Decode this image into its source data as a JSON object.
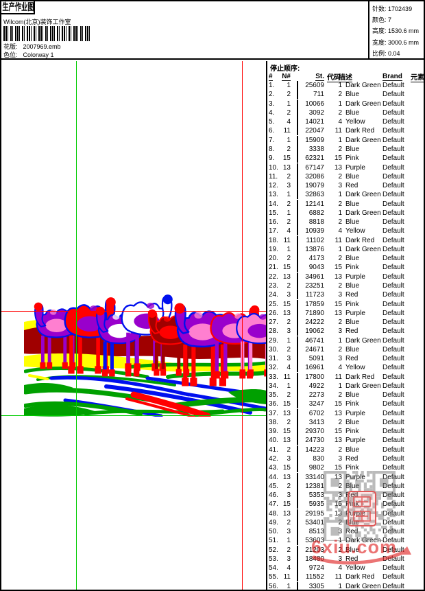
{
  "header": {
    "title": "生产作业图",
    "subtitle": "Wilcom(北京)装饰工作室",
    "pattern_label": "花版:",
    "pattern_value": "2007969.emb",
    "colorway_label": "色位:",
    "colorway_value": "Colorway 1",
    "info": [
      {
        "label": "针数:",
        "value": "1702439"
      },
      {
        "label": "颜色:",
        "value": "7"
      },
      {
        "label": "高度:",
        "value": "1530.6 mm"
      },
      {
        "label": "宽度:",
        "value": "3000.6 mm"
      },
      {
        "label": "比例:",
        "value": "0.04"
      }
    ]
  },
  "stop_table": {
    "section_title": "停止顺序:",
    "columns": [
      "#",
      "N#",
      "St.",
      "代码",
      "描述",
      "Brand",
      "元素"
    ],
    "rows": [
      [
        "1.",
        "1",
        "25609",
        "1",
        "Dark Green",
        "Default"
      ],
      [
        "2.",
        "2",
        "711",
        "2",
        "Blue",
        "Default"
      ],
      [
        "3.",
        "1",
        "10066",
        "1",
        "Dark Green",
        "Default"
      ],
      [
        "4.",
        "2",
        "3092",
        "2",
        "Blue",
        "Default"
      ],
      [
        "5.",
        "4",
        "14021",
        "4",
        "Yellow",
        "Default"
      ],
      [
        "6.",
        "11",
        "22047",
        "11",
        "Dark Red",
        "Default"
      ],
      [
        "7.",
        "1",
        "15909",
        "1",
        "Dark Green",
        "Default"
      ],
      [
        "8.",
        "2",
        "3338",
        "2",
        "Blue",
        "Default"
      ],
      [
        "9.",
        "15",
        "62321",
        "15",
        "Pink",
        "Default"
      ],
      [
        "10.",
        "13",
        "67147",
        "13",
        "Purple",
        "Default"
      ],
      [
        "11.",
        "2",
        "32086",
        "2",
        "Blue",
        "Default"
      ],
      [
        "12.",
        "3",
        "19079",
        "3",
        "Red",
        "Default"
      ],
      [
        "13.",
        "1",
        "32863",
        "1",
        "Dark Green",
        "Default"
      ],
      [
        "14.",
        "2",
        "12141",
        "2",
        "Blue",
        "Default"
      ],
      [
        "15.",
        "1",
        "6882",
        "1",
        "Dark Green",
        "Default"
      ],
      [
        "16.",
        "2",
        "8818",
        "2",
        "Blue",
        "Default"
      ],
      [
        "17.",
        "4",
        "10939",
        "4",
        "Yellow",
        "Default"
      ],
      [
        "18.",
        "11",
        "11102",
        "11",
        "Dark Red",
        "Default"
      ],
      [
        "19.",
        "1",
        "13876",
        "1",
        "Dark Green",
        "Default"
      ],
      [
        "20.",
        "2",
        "4173",
        "2",
        "Blue",
        "Default"
      ],
      [
        "21.",
        "15",
        "9043",
        "15",
        "Pink",
        "Default"
      ],
      [
        "22.",
        "13",
        "34961",
        "13",
        "Purple",
        "Default"
      ],
      [
        "23.",
        "2",
        "23251",
        "2",
        "Blue",
        "Default"
      ],
      [
        "24.",
        "3",
        "11723",
        "3",
        "Red",
        "Default"
      ],
      [
        "25.",
        "15",
        "17859",
        "15",
        "Pink",
        "Default"
      ],
      [
        "26.",
        "13",
        "71890",
        "13",
        "Purple",
        "Default"
      ],
      [
        "27.",
        "2",
        "24222",
        "2",
        "Blue",
        "Default"
      ],
      [
        "28.",
        "3",
        "19062",
        "3",
        "Red",
        "Default"
      ],
      [
        "29.",
        "1",
        "46741",
        "1",
        "Dark Green",
        "Default"
      ],
      [
        "30.",
        "2",
        "24671",
        "2",
        "Blue",
        "Default"
      ],
      [
        "31.",
        "3",
        "5091",
        "3",
        "Red",
        "Default"
      ],
      [
        "32.",
        "4",
        "16961",
        "4",
        "Yellow",
        "Default"
      ],
      [
        "33.",
        "11",
        "17800",
        "11",
        "Dark Red",
        "Default"
      ],
      [
        "34.",
        "1",
        "4922",
        "1",
        "Dark Green",
        "Default"
      ],
      [
        "35.",
        "2",
        "2273",
        "2",
        "Blue",
        "Default"
      ],
      [
        "36.",
        "15",
        "3247",
        "15",
        "Pink",
        "Default"
      ],
      [
        "37.",
        "13",
        "6702",
        "13",
        "Purple",
        "Default"
      ],
      [
        "38.",
        "2",
        "3413",
        "2",
        "Blue",
        "Default"
      ],
      [
        "39.",
        "15",
        "29370",
        "15",
        "Pink",
        "Default"
      ],
      [
        "40.",
        "13",
        "24730",
        "13",
        "Purple",
        "Default"
      ],
      [
        "41.",
        "2",
        "14223",
        "2",
        "Blue",
        "Default"
      ],
      [
        "42.",
        "3",
        "830",
        "3",
        "Red",
        "Default"
      ],
      [
        "43.",
        "15",
        "9802",
        "15",
        "Pink",
        "Default"
      ],
      [
        "44.",
        "13",
        "33140",
        "13",
        "Purple",
        "Default"
      ],
      [
        "45.",
        "2",
        "12381",
        "2",
        "Blue",
        "Default"
      ],
      [
        "46.",
        "3",
        "5353",
        "3",
        "Red",
        "Default"
      ],
      [
        "47.",
        "15",
        "5935",
        "15",
        "Pink",
        "Default"
      ],
      [
        "48.",
        "13",
        "29195",
        "13",
        "Purple",
        "Default"
      ],
      [
        "49.",
        "2",
        "53401",
        "2",
        "Blue",
        "Default"
      ],
      [
        "50.",
        "3",
        "8513",
        "3",
        "Red",
        "Default"
      ],
      [
        "51.",
        "1",
        "53603",
        "1",
        "Dark Green",
        "Default"
      ],
      [
        "52.",
        "2",
        "21203",
        "2",
        "Blue",
        "Default"
      ],
      [
        "53.",
        "3",
        "18480",
        "3",
        "Red",
        "Default"
      ],
      [
        "54.",
        "4",
        "9724",
        "4",
        "Yellow",
        "Default"
      ],
      [
        "55.",
        "11",
        "11552",
        "11",
        "Dark Red",
        "Default"
      ],
      [
        "56.",
        "1",
        "3305",
        "1",
        "Dark Green",
        "Default"
      ]
    ]
  },
  "palette": {
    "Dark Green": "#00A000",
    "Blue": "#0010EE",
    "Red": "#FF0000",
    "Yellow": "#FFFF00",
    "Dark Red": "#A00000",
    "Purple": "#9900CC",
    "Pink": "#FF7FD0",
    "reg_green": "#00CC00",
    "reg_red": "#FF0000"
  },
  "watermark": {
    "text": "6xiu.com"
  }
}
